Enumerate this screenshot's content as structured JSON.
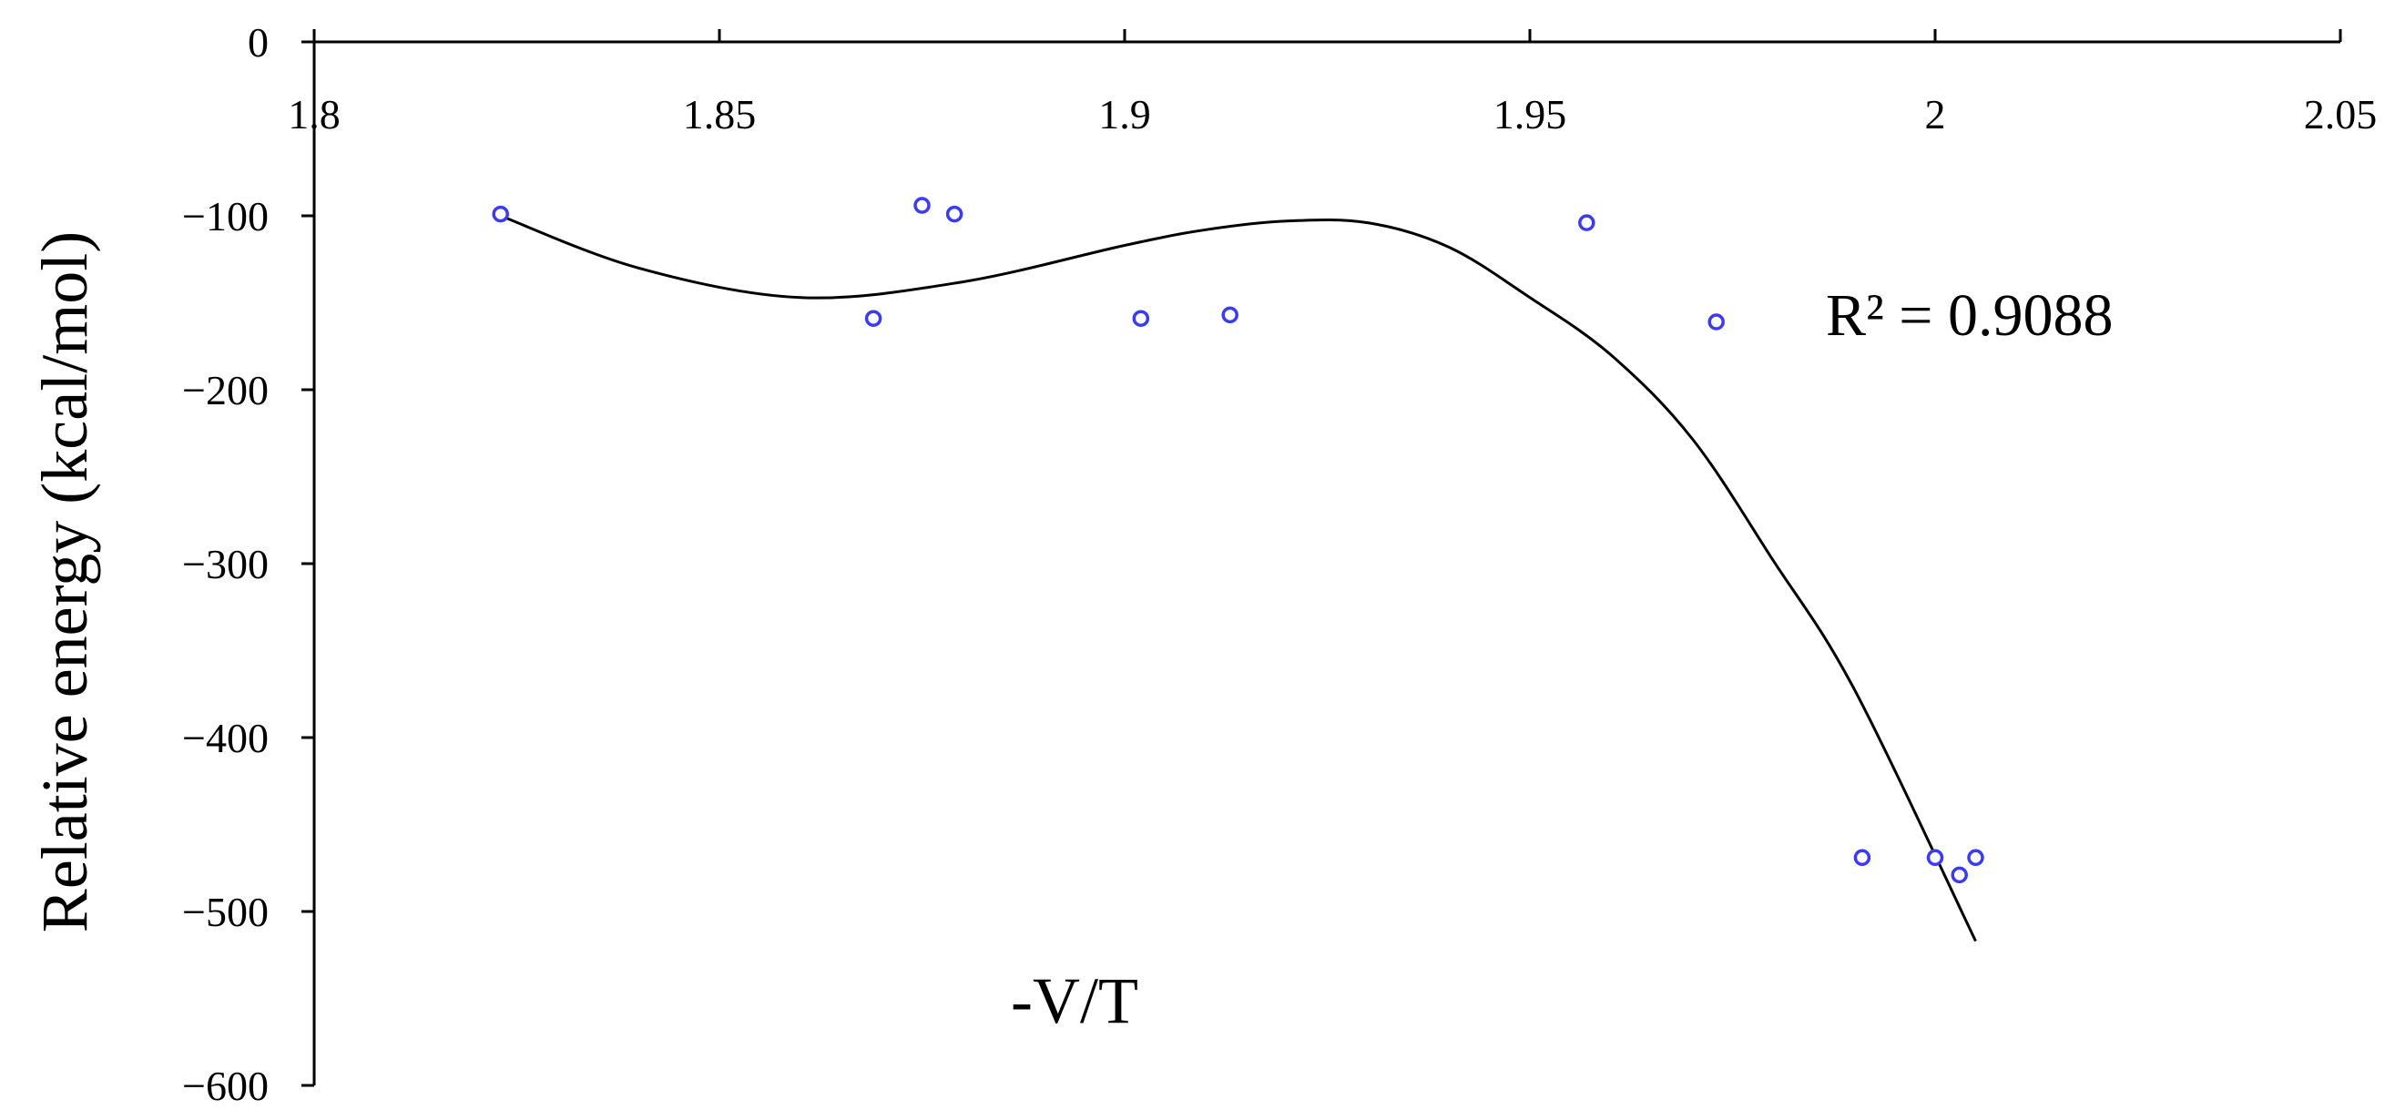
{
  "chart_data": {
    "type": "scatter",
    "title": "",
    "xlabel": "-V/T",
    "ylabel": "Relative energy (kcal/mol)",
    "xlim": [
      1.8,
      2.05
    ],
    "ylim": [
      -600,
      0
    ],
    "x_ticks": [
      1.8,
      1.85,
      1.9,
      1.95,
      2.0,
      2.05
    ],
    "x_tick_labels": [
      "1.8",
      "1.85",
      "1.9",
      "1.95",
      "2",
      "2.05"
    ],
    "y_ticks": [
      0,
      -100,
      -200,
      -300,
      -400,
      -500,
      -600
    ],
    "y_tick_labels": [
      "0",
      "−100",
      "−200",
      "−300",
      "−400",
      "−500",
      "−600"
    ],
    "x_axis_position": "top",
    "grid": false,
    "legend": "none",
    "marker_color": "#3b3bf0",
    "trendline_color": "#000000",
    "annotation": "R² = 0.9088",
    "points": [
      {
        "x": 1.823,
        "y": -99
      },
      {
        "x": 1.869,
        "y": -159
      },
      {
        "x": 1.875,
        "y": -94
      },
      {
        "x": 1.879,
        "y": -99
      },
      {
        "x": 1.902,
        "y": -159
      },
      {
        "x": 1.913,
        "y": -157
      },
      {
        "x": 1.957,
        "y": -104
      },
      {
        "x": 1.973,
        "y": -161
      },
      {
        "x": 1.991,
        "y": -469
      },
      {
        "x": 2.0,
        "y": -469
      },
      {
        "x": 2.003,
        "y": -479
      },
      {
        "x": 2.005,
        "y": -469
      }
    ],
    "trendline": {
      "type": "polynomial",
      "x": [
        1.823,
        1.84,
        1.86,
        1.88,
        1.9,
        1.91,
        1.92,
        1.93,
        1.94,
        1.95,
        1.96,
        1.97,
        1.98,
        1.99,
        2.005
      ],
      "y": [
        -100,
        -130,
        -147,
        -138,
        -117,
        -108,
        -103,
        -104,
        -118,
        -147,
        -180,
        -228,
        -298,
        -372,
        -517
      ]
    }
  }
}
